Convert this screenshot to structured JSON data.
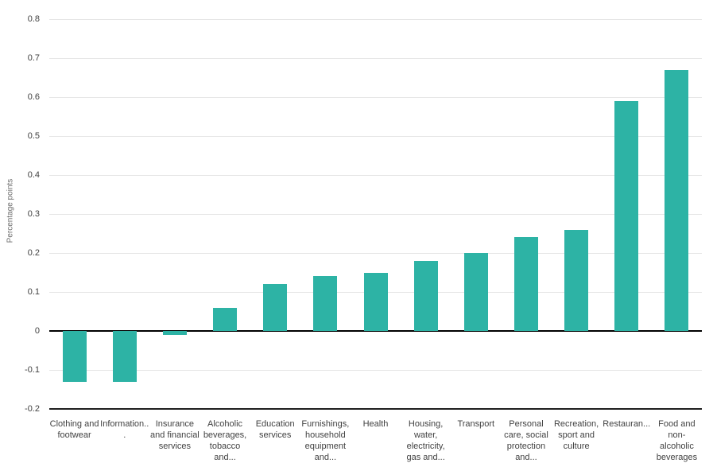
{
  "chart_data": {
    "type": "bar",
    "title": "",
    "xlabel": "",
    "ylabel": "Percentage points",
    "ylim": [
      -0.2,
      0.8
    ],
    "grid": true,
    "legend": "none",
    "bar_color": "#2DB3A5",
    "gridline_color": "#e6e6e6",
    "zero_line_color": "#000000",
    "axis_line_color": "#1f1f1f",
    "tick_text_color": "#414141",
    "axis_title_color": "#6e6e6e",
    "categories": [
      "Clothing and footwear",
      "Information...",
      "Insurance and financial services",
      "Alcoholic beverages, tobacco and...",
      "Education services",
      "Furnishings, household equipment and...",
      "Health",
      "Housing, water, electricity, gas and...",
      "Transport",
      "Personal care, social protection and...",
      "Recreation, sport and culture",
      "Restauran...",
      "Food and non-alcoholic beverages"
    ],
    "values": [
      -0.13,
      -0.13,
      -0.01,
      0.06,
      0.12,
      0.14,
      0.15,
      0.18,
      0.2,
      0.24,
      0.26,
      0.59,
      0.67
    ],
    "yticks": [
      {
        "label": "0.8",
        "value": 0.8
      },
      {
        "label": "0.7",
        "value": 0.7
      },
      {
        "label": "0.6",
        "value": 0.6
      },
      {
        "label": "0.5",
        "value": 0.5
      },
      {
        "label": "0.4",
        "value": 0.4
      },
      {
        "label": "0.3",
        "value": 0.3
      },
      {
        "label": "0.2",
        "value": 0.2
      },
      {
        "label": "0.1",
        "value": 0.1
      },
      {
        "label": "0",
        "value": 0
      },
      {
        "label": "-0.1",
        "value": -0.1
      },
      {
        "label": "-0.2",
        "value": -0.2
      }
    ]
  }
}
